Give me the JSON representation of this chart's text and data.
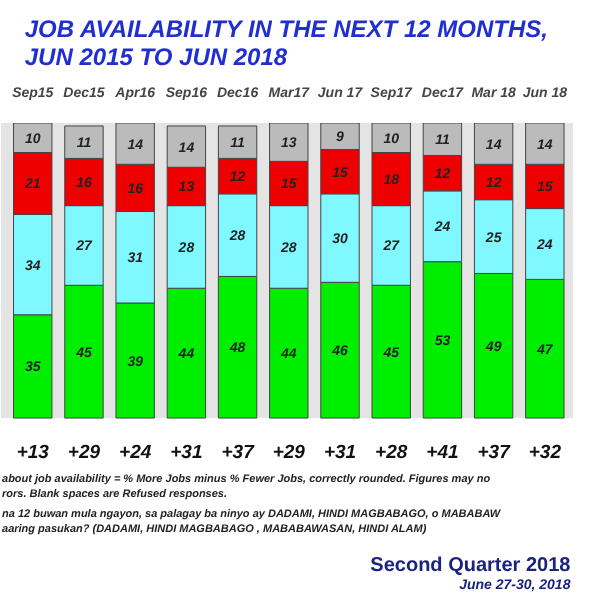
{
  "chart_data": {
    "type": "bar",
    "stacked": true,
    "data_labels": true,
    "title": "JOB AVAILABILITY IN THE NEXT 12 MONTHS,\nJUN 2015 TO JUN 2018",
    "categories": [
      "Sep15",
      "Dec15",
      "Apr16",
      "Sep16",
      "Dec16",
      "Mar17",
      "Jun 17",
      "Sep17",
      "Dec17",
      "Mar 18",
      "Jun 18"
    ],
    "series": [
      {
        "color": "#00ee00",
        "values": [
          35,
          45,
          39,
          44,
          48,
          44,
          46,
          45,
          53,
          49,
          47
        ]
      },
      {
        "color": "#80f8ff",
        "values": [
          34,
          27,
          31,
          28,
          28,
          28,
          30,
          27,
          24,
          25,
          24
        ]
      },
      {
        "color": "#ee0000",
        "values": [
          21,
          16,
          16,
          13,
          12,
          15,
          15,
          18,
          12,
          12,
          15
        ]
      },
      {
        "color": "#bbbbbb",
        "values": [
          10,
          11,
          14,
          14,
          11,
          13,
          9,
          10,
          11,
          14,
          14
        ]
      }
    ],
    "annotations": [
      "+13",
      "+29",
      "+24",
      "+31",
      "+37",
      "+29",
      "+31",
      "+28",
      "+41",
      "+37",
      "+32",
      "about job availability = % More Jobs minus % Fewer Jobs, correctly rounded. Figures may no",
      "rors. Blank spaces are Refused responses.",
      "na 12 buwan mula ngayon, sa palagay ba ninyo ay DADAMI, HINDI MAGBABAGO, o MABABAW",
      "aaring pasukan? (DADAMI, HINDI MAGBABAGO , MABABAWASAN, HINDI ALAM)",
      "Second Quarter 2018",
      "June 27-30, 2018"
    ]
  }
}
